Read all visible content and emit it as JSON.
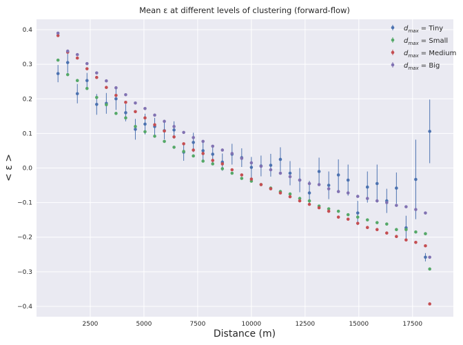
{
  "chart_data": {
    "type": "scatter",
    "title": "Mean ε at different levels of clustering (forward-flow)",
    "xlabel": "Distance (m)",
    "ylabel": "< ε >",
    "xlim": [
      0,
      19400
    ],
    "ylim": [
      -0.43,
      0.43
    ],
    "xticks": [
      2500,
      5000,
      7500,
      10000,
      12500,
      15000,
      17500
    ],
    "xtick_labels": [
      "2500",
      "5000",
      "7500",
      "10000",
      "12500",
      "15000",
      "17500"
    ],
    "yticks": [
      -0.4,
      -0.3,
      -0.2,
      -0.1,
      0.0,
      0.1,
      0.2,
      0.3,
      0.4
    ],
    "ytick_labels": [
      "−0.4",
      "−0.3",
      "−0.2",
      "−0.1",
      "0.0",
      "0.1",
      "0.2",
      "0.3",
      "0.4"
    ],
    "grid": true,
    "legend_position": "top-right",
    "series": [
      {
        "name": "Tiny",
        "legend_label": "= Tiny",
        "color": "#4c72b0",
        "points": [
          {
            "x": 1000,
            "y": 0.273,
            "err": 0.025
          },
          {
            "x": 1450,
            "y": 0.305,
            "err": 0.03
          },
          {
            "x": 1900,
            "y": 0.215,
            "err": 0.028
          },
          {
            "x": 2350,
            "y": 0.253,
            "err": 0.022
          },
          {
            "x": 2800,
            "y": 0.184,
            "err": 0.03
          },
          {
            "x": 3250,
            "y": 0.187,
            "err": 0.03
          },
          {
            "x": 3700,
            "y": 0.2,
            "err": 0.032
          },
          {
            "x": 4150,
            "y": 0.16,
            "err": 0.025
          },
          {
            "x": 4600,
            "y": 0.112,
            "err": 0.03
          },
          {
            "x": 5050,
            "y": 0.127,
            "err": 0.03
          },
          {
            "x": 5500,
            "y": 0.12,
            "err": 0.025
          },
          {
            "x": 5950,
            "y": 0.108,
            "err": 0.025
          },
          {
            "x": 6400,
            "y": 0.11,
            "err": 0.025
          },
          {
            "x": 6850,
            "y": 0.046,
            "err": 0.025
          },
          {
            "x": 7300,
            "y": 0.074,
            "err": 0.028
          },
          {
            "x": 7750,
            "y": 0.05,
            "err": 0.028
          },
          {
            "x": 8200,
            "y": 0.04,
            "err": 0.025
          },
          {
            "x": 8650,
            "y": 0.017,
            "err": 0.025
          },
          {
            "x": 9100,
            "y": 0.04,
            "err": 0.03
          },
          {
            "x": 9550,
            "y": 0.03,
            "err": 0.027
          },
          {
            "x": 10000,
            "y": 0.002,
            "err": 0.03
          },
          {
            "x": 10450,
            "y": 0.006,
            "err": 0.03
          },
          {
            "x": 10900,
            "y": 0.008,
            "err": 0.033
          },
          {
            "x": 11350,
            "y": 0.025,
            "err": 0.035
          },
          {
            "x": 11800,
            "y": -0.015,
            "err": 0.035
          },
          {
            "x": 12250,
            "y": -0.035,
            "err": 0.035
          },
          {
            "x": 12700,
            "y": -0.072,
            "err": 0.035
          },
          {
            "x": 13150,
            "y": -0.01,
            "err": 0.04
          },
          {
            "x": 13600,
            "y": -0.05,
            "err": 0.04
          },
          {
            "x": 14050,
            "y": -0.02,
            "err": 0.045
          },
          {
            "x": 14500,
            "y": -0.035,
            "err": 0.045
          },
          {
            "x": 14950,
            "y": -0.13,
            "err": 0.035
          },
          {
            "x": 15400,
            "y": -0.055,
            "err": 0.045
          },
          {
            "x": 15850,
            "y": -0.045,
            "err": 0.055
          },
          {
            "x": 16300,
            "y": -0.095,
            "err": 0.035
          },
          {
            "x": 16750,
            "y": -0.058,
            "err": 0.045
          },
          {
            "x": 17200,
            "y": -0.173,
            "err": 0.035
          },
          {
            "x": 17650,
            "y": -0.033,
            "err": 0.115
          },
          {
            "x": 18100,
            "y": -0.258,
            "err": 0.012
          },
          {
            "x": 18300,
            "y": 0.106,
            "err": 0.092
          }
        ]
      },
      {
        "name": "Small",
        "legend_label": "= Small",
        "color": "#55a868",
        "points": [
          {
            "x": 1000,
            "y": 0.312
          },
          {
            "x": 1450,
            "y": 0.27
          },
          {
            "x": 1900,
            "y": 0.253
          },
          {
            "x": 2350,
            "y": 0.23
          },
          {
            "x": 2800,
            "y": 0.204
          },
          {
            "x": 3250,
            "y": 0.183
          },
          {
            "x": 3700,
            "y": 0.158
          },
          {
            "x": 4150,
            "y": 0.145
          },
          {
            "x": 4600,
            "y": 0.12
          },
          {
            "x": 5050,
            "y": 0.105
          },
          {
            "x": 5500,
            "y": 0.092
          },
          {
            "x": 5950,
            "y": 0.077
          },
          {
            "x": 6400,
            "y": 0.06
          },
          {
            "x": 6850,
            "y": 0.048
          },
          {
            "x": 7300,
            "y": 0.035
          },
          {
            "x": 7750,
            "y": 0.02
          },
          {
            "x": 8200,
            "y": 0.012
          },
          {
            "x": 8650,
            "y": -0.002
          },
          {
            "x": 9100,
            "y": -0.015
          },
          {
            "x": 9550,
            "y": -0.03
          },
          {
            "x": 10000,
            "y": -0.038
          },
          {
            "x": 10450,
            "y": -0.048
          },
          {
            "x": 10900,
            "y": -0.058
          },
          {
            "x": 11350,
            "y": -0.068
          },
          {
            "x": 11800,
            "y": -0.075
          },
          {
            "x": 12250,
            "y": -0.088
          },
          {
            "x": 12700,
            "y": -0.095
          },
          {
            "x": 13150,
            "y": -0.11
          },
          {
            "x": 13600,
            "y": -0.118
          },
          {
            "x": 14050,
            "y": -0.125
          },
          {
            "x": 14500,
            "y": -0.135
          },
          {
            "x": 14950,
            "y": -0.142
          },
          {
            "x": 15400,
            "y": -0.15
          },
          {
            "x": 15850,
            "y": -0.158
          },
          {
            "x": 16300,
            "y": -0.162
          },
          {
            "x": 16750,
            "y": -0.178
          },
          {
            "x": 17200,
            "y": -0.178
          },
          {
            "x": 17650,
            "y": -0.185
          },
          {
            "x": 18100,
            "y": -0.19
          },
          {
            "x": 18300,
            "y": -0.292
          }
        ]
      },
      {
        "name": "Medium",
        "legend_label": "= Medium",
        "color": "#c44e52",
        "points": [
          {
            "x": 1000,
            "y": 0.383
          },
          {
            "x": 1450,
            "y": 0.335
          },
          {
            "x": 1900,
            "y": 0.318
          },
          {
            "x": 2350,
            "y": 0.287
          },
          {
            "x": 2800,
            "y": 0.262
          },
          {
            "x": 3250,
            "y": 0.233
          },
          {
            "x": 3700,
            "y": 0.21
          },
          {
            "x": 4150,
            "y": 0.19
          },
          {
            "x": 4600,
            "y": 0.163
          },
          {
            "x": 5050,
            "y": 0.145
          },
          {
            "x": 5500,
            "y": 0.125
          },
          {
            "x": 5950,
            "y": 0.107
          },
          {
            "x": 6400,
            "y": 0.09
          },
          {
            "x": 6850,
            "y": 0.07
          },
          {
            "x": 7300,
            "y": 0.052
          },
          {
            "x": 7750,
            "y": 0.042
          },
          {
            "x": 8200,
            "y": 0.022
          },
          {
            "x": 8650,
            "y": 0.012
          },
          {
            "x": 9100,
            "y": -0.005
          },
          {
            "x": 9550,
            "y": -0.02
          },
          {
            "x": 10000,
            "y": -0.032
          },
          {
            "x": 10450,
            "y": -0.048
          },
          {
            "x": 10900,
            "y": -0.06
          },
          {
            "x": 11350,
            "y": -0.072
          },
          {
            "x": 11800,
            "y": -0.083
          },
          {
            "x": 12250,
            "y": -0.095
          },
          {
            "x": 12700,
            "y": -0.105
          },
          {
            "x": 13150,
            "y": -0.115
          },
          {
            "x": 13600,
            "y": -0.125
          },
          {
            "x": 14050,
            "y": -0.142
          },
          {
            "x": 14500,
            "y": -0.148
          },
          {
            "x": 14950,
            "y": -0.16
          },
          {
            "x": 15400,
            "y": -0.172
          },
          {
            "x": 15850,
            "y": -0.178
          },
          {
            "x": 16300,
            "y": -0.188
          },
          {
            "x": 16750,
            "y": -0.198
          },
          {
            "x": 17200,
            "y": -0.208
          },
          {
            "x": 17650,
            "y": -0.215
          },
          {
            "x": 18100,
            "y": -0.225
          },
          {
            "x": 18300,
            "y": -0.393
          }
        ]
      },
      {
        "name": "Big",
        "legend_label": "= Big",
        "color": "#8172b2",
        "points": [
          {
            "x": 1000,
            "y": 0.39
          },
          {
            "x": 1450,
            "y": 0.338
          },
          {
            "x": 1900,
            "y": 0.328
          },
          {
            "x": 2350,
            "y": 0.302
          },
          {
            "x": 2800,
            "y": 0.275
          },
          {
            "x": 3250,
            "y": 0.252
          },
          {
            "x": 3700,
            "y": 0.232
          },
          {
            "x": 4150,
            "y": 0.212
          },
          {
            "x": 4600,
            "y": 0.188
          },
          {
            "x": 5050,
            "y": 0.172
          },
          {
            "x": 5500,
            "y": 0.153
          },
          {
            "x": 5950,
            "y": 0.135
          },
          {
            "x": 6400,
            "y": 0.12
          },
          {
            "x": 6850,
            "y": 0.103
          },
          {
            "x": 7300,
            "y": 0.088
          },
          {
            "x": 7750,
            "y": 0.077
          },
          {
            "x": 8200,
            "y": 0.063
          },
          {
            "x": 8650,
            "y": 0.052
          },
          {
            "x": 9100,
            "y": 0.042
          },
          {
            "x": 9550,
            "y": 0.028
          },
          {
            "x": 10000,
            "y": 0.015
          },
          {
            "x": 10450,
            "y": 0.005
          },
          {
            "x": 10900,
            "y": -0.005
          },
          {
            "x": 11350,
            "y": -0.015
          },
          {
            "x": 11800,
            "y": -0.025
          },
          {
            "x": 12250,
            "y": -0.035
          },
          {
            "x": 12700,
            "y": -0.045
          },
          {
            "x": 13150,
            "y": -0.048
          },
          {
            "x": 13600,
            "y": -0.06
          },
          {
            "x": 14050,
            "y": -0.068
          },
          {
            "x": 14500,
            "y": -0.072
          },
          {
            "x": 14950,
            "y": -0.082
          },
          {
            "x": 15400,
            "y": -0.088
          },
          {
            "x": 15850,
            "y": -0.095
          },
          {
            "x": 16300,
            "y": -0.1
          },
          {
            "x": 16750,
            "y": -0.108
          },
          {
            "x": 17200,
            "y": -0.112
          },
          {
            "x": 17650,
            "y": -0.12
          },
          {
            "x": 18100,
            "y": -0.13
          },
          {
            "x": 18300,
            "y": -0.258
          }
        ]
      }
    ]
  }
}
